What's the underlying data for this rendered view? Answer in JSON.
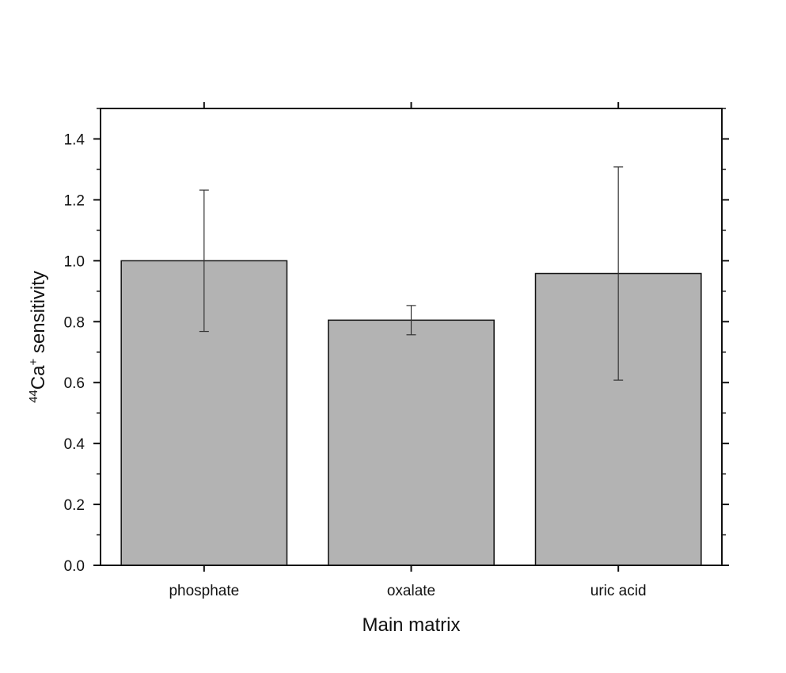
{
  "chart_data": {
    "type": "bar",
    "categories": [
      "phosphate",
      "oxalate",
      "uric acid"
    ],
    "values": [
      1.0,
      0.805,
      0.958
    ],
    "errors": [
      0.232,
      0.048,
      0.35
    ],
    "ylabel_sup1": "44",
    "ylabel_main": "Ca",
    "ylabel_sup2": "+",
    "ylabel_rest": " sensitivity",
    "xlabel": "Main matrix",
    "ylim": [
      0,
      1.5
    ],
    "yticks": [
      0.0,
      0.2,
      0.4,
      0.6,
      0.8,
      1.0,
      1.2,
      1.4
    ],
    "ytick_labels": [
      "0.0",
      "0.2",
      "0.4",
      "0.6",
      "0.8",
      "1.0",
      "1.2",
      "1.4"
    ],
    "bar_color": "#b3b3b3",
    "grid": false,
    "legend": "none"
  }
}
